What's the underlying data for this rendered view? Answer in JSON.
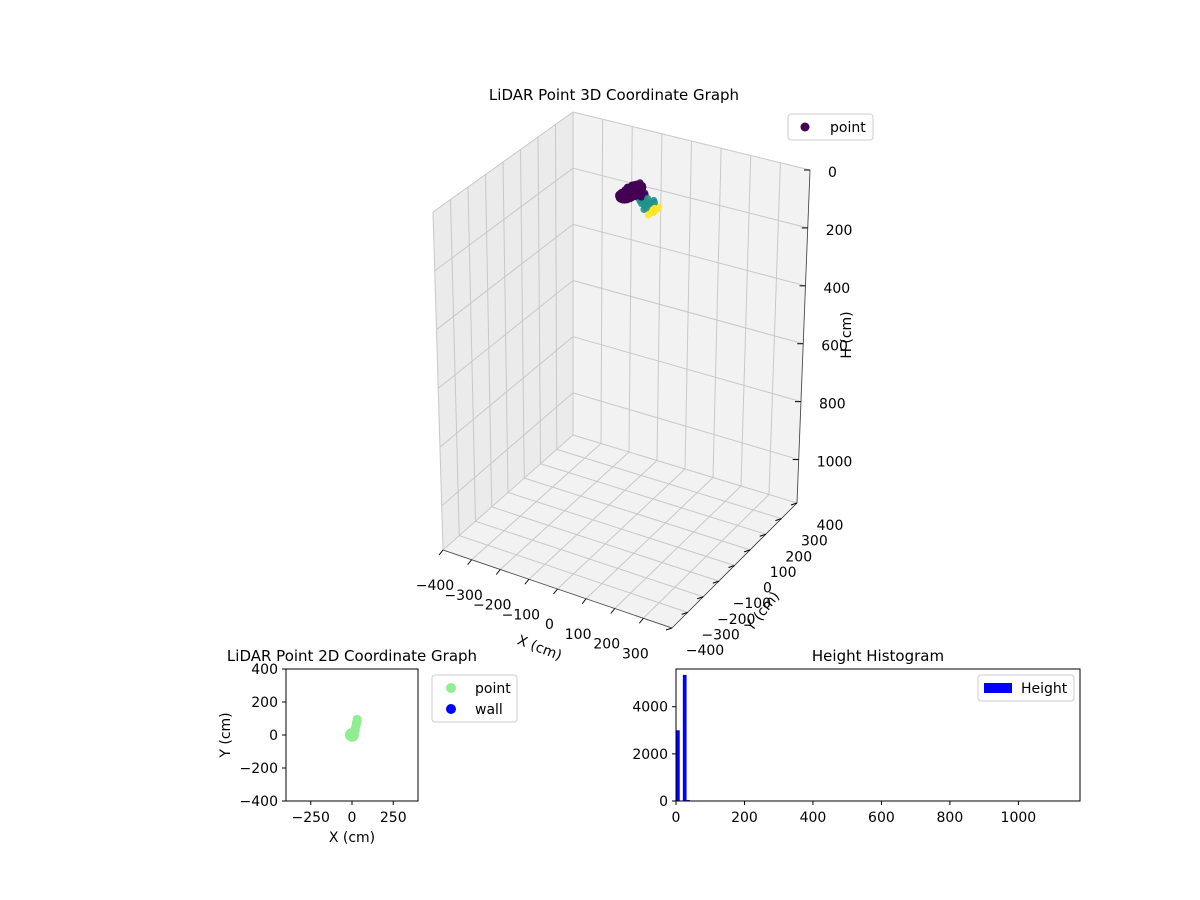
{
  "chart_data": [
    {
      "type": "scatter3d",
      "title": "LiDAR Point 3D Coordinate Graph",
      "xlabel": "X (cm)",
      "ylabel": "Y (cm)",
      "zlabel": "H (cm)",
      "xticks": [
        "−400",
        "−300",
        "−200",
        "−100",
        "0",
        "100",
        "200",
        "300"
      ],
      "yticks": [
        "−400",
        "−300",
        "−200",
        "−100",
        "0",
        "100",
        "200",
        "300",
        "400"
      ],
      "zticks": [
        "0",
        "200",
        "400",
        "600",
        "800",
        "1000"
      ],
      "xlim": [
        -400,
        400
      ],
      "ylim": [
        -400,
        400
      ],
      "zlim": [
        1150,
        0
      ],
      "zlim_note": "inverted",
      "grid": true,
      "legend": {
        "entries": [
          "point"
        ],
        "placement": "top-right"
      },
      "colormap": "viridis",
      "colors": {
        "point": "#440154",
        "high": "#fde725",
        "mid": "#21918c"
      },
      "series": [
        {
          "name": "point",
          "cluster": {
            "x_range": [
              -20,
              40
            ],
            "y_range": [
              -40,
              100
            ],
            "h_range": [
              0,
              40
            ]
          }
        }
      ]
    },
    {
      "type": "scatter",
      "title": "LiDAR Point 2D Coordinate Graph",
      "xlabel": "X (cm)",
      "ylabel": "Y (cm)",
      "xticks": [
        "−250",
        "0",
        "250"
      ],
      "yticks": [
        "400",
        "200",
        "0",
        "−200",
        "−400"
      ],
      "xlim": [
        -400,
        400
      ],
      "ylim": [
        -400,
        400
      ],
      "grid": false,
      "legend": {
        "entries": [
          "point",
          "wall"
        ],
        "placement": "outside-right"
      },
      "colors": {
        "point": "#90ee90",
        "wall": "#0000ff"
      },
      "series": [
        {
          "name": "point",
          "cluster": {
            "x_range": [
              -20,
              40
            ],
            "y_range": [
              -40,
              100
            ]
          }
        },
        {
          "name": "wall",
          "points": []
        }
      ]
    },
    {
      "type": "bar",
      "title": "Height Histogram",
      "xlabel": "",
      "ylabel": "",
      "xticks": [
        "0",
        "200",
        "400",
        "600",
        "800",
        "1000"
      ],
      "yticks": [
        "0",
        "2000",
        "4000"
      ],
      "xlim": [
        0,
        1180
      ],
      "ylim": [
        0,
        5600
      ],
      "grid": false,
      "legend": {
        "entries": [
          "Height"
        ],
        "placement": "top-right"
      },
      "colors": {
        "Height": "#0000ff"
      },
      "series": [
        {
          "name": "Height",
          "bins": [
            {
              "x0": 0,
              "x1": 10,
              "count": 3000
            },
            {
              "x0": 10,
              "x1": 20,
              "count": 0
            },
            {
              "x0": 20,
              "x1": 30,
              "count": 5350
            },
            {
              "x0": 30,
              "x1": 40,
              "count": 40
            }
          ]
        }
      ]
    }
  ]
}
